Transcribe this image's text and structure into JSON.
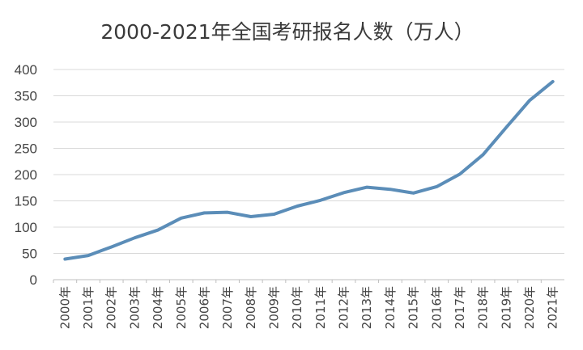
{
  "chart_data": {
    "type": "line",
    "title": "2000-2021年全国考研报名人数（万人）",
    "xlabel": "",
    "ylabel": "",
    "categories": [
      "2000年",
      "2001年",
      "2002年",
      "2003年",
      "2004年",
      "2005年",
      "2006年",
      "2007年",
      "2008年",
      "2009年",
      "2010年",
      "2011年",
      "2012年",
      "2013年",
      "2014年",
      "2015年",
      "2016年",
      "2017年",
      "2018年",
      "2019年",
      "2020年",
      "2021年"
    ],
    "series": [
      {
        "values": [
          39.2,
          46,
          62.4,
          79.7,
          94.5,
          117.2,
          127.1,
          128.2,
          120,
          124.6,
          140,
          151.1,
          165.6,
          176,
          172,
          164.9,
          177,
          201,
          238,
          290,
          341,
          377
        ]
      }
    ],
    "ylim": [
      0,
      400
    ],
    "yticks": [
      0,
      50,
      100,
      150,
      200,
      250,
      300,
      350,
      400
    ],
    "grid": true,
    "legend": "none",
    "colors": {
      "line": "#5b8db8",
      "grid": "#d9d9d9",
      "text": "#444444"
    }
  }
}
